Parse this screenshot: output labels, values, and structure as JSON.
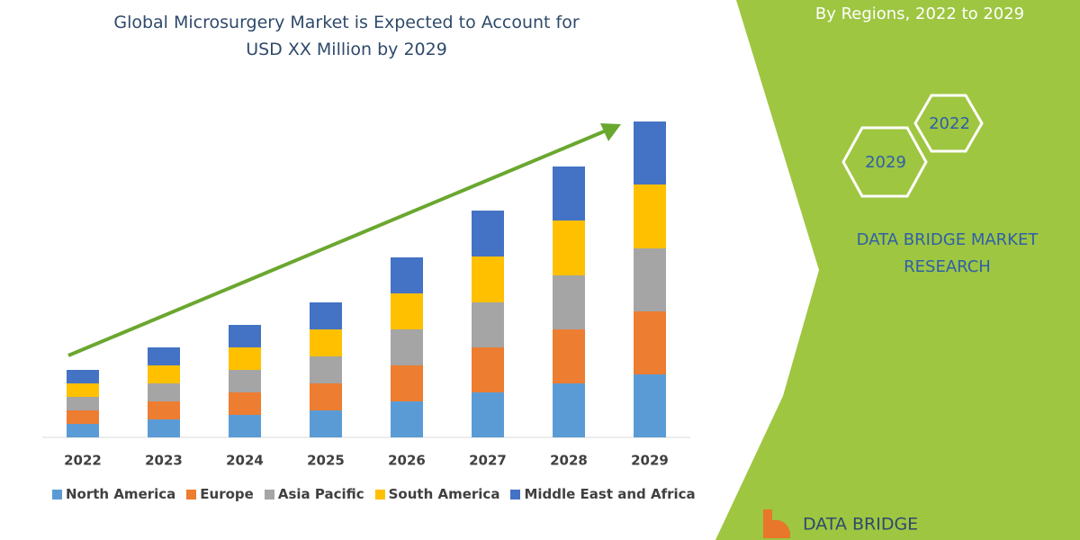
{
  "chart_data": {
    "type": "stacked_bar",
    "title": "Global Microsurgery Market is Expected to Account for USD XX Million by 2029",
    "categories": [
      "2022",
      "2023",
      "2024",
      "2025",
      "2026",
      "2027",
      "2028",
      "2029"
    ],
    "series": [
      {
        "name": "North America",
        "color": "#5b9bd5",
        "values": [
          15,
          20,
          25,
          30,
          40,
          50,
          60,
          70
        ]
      },
      {
        "name": "Europe",
        "color": "#ed7d31",
        "values": [
          15,
          20,
          25,
          30,
          40,
          50,
          60,
          70
        ]
      },
      {
        "name": "Asia Pacific",
        "color": "#a5a5a5",
        "values": [
          15,
          20,
          25,
          30,
          40,
          50,
          60,
          70
        ]
      },
      {
        "name": "South America",
        "color": "#ffc000",
        "values": [
          15,
          20,
          25,
          30,
          40,
          51,
          61,
          71
        ]
      },
      {
        "name": "Middle East and Africa",
        "color": "#4472c4",
        "values": [
          15,
          20,
          25,
          30,
          40,
          51,
          60,
          70
        ]
      }
    ],
    "ylim": [
      0,
      360
    ],
    "legend": "bottom"
  },
  "panel": {
    "subtitle": "By Regions, 2022 to 2029",
    "badges": [
      "2022",
      "2029"
    ],
    "brand": "DATA BRIDGE MARKET RESEARCH",
    "logo": "DATA BRIDGE"
  }
}
